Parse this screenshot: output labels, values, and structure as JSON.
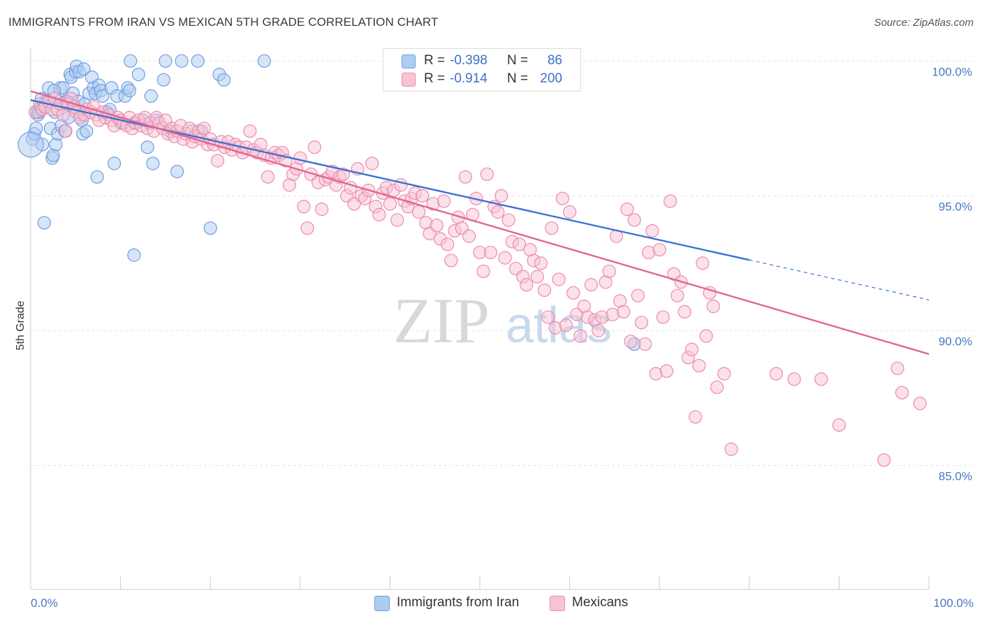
{
  "title": "IMMIGRANTS FROM IRAN VS MEXICAN 5TH GRADE CORRELATION CHART",
  "source": "Source: ZipAtlas.com",
  "colors": {
    "iran_fill": "#aecbf1",
    "iran_stroke": "#6f9ee0",
    "iran_line": "#3a72d0",
    "mex_fill": "#f8c3d3",
    "mex_stroke": "#ec8aab",
    "mex_line": "#e06791",
    "tick_text": "#4a78c4",
    "grid": "#e3e3e3"
  },
  "legend_top": {
    "rows": [
      {
        "r_label": "R =",
        "r_value": "-0.398",
        "n_label": "N =",
        "n_value": "86",
        "series": "iran"
      },
      {
        "r_label": "R =",
        "r_value": "-0.914",
        "n_label": "N =",
        "n_value": "200",
        "series": "mex"
      }
    ]
  },
  "legend_bottom": {
    "items": [
      {
        "label": "Immigrants from Iran",
        "series": "iran"
      },
      {
        "label": "Mexicans",
        "series": "mex"
      }
    ]
  },
  "watermark": {
    "zip": "ZIP",
    "atlas": "atlas"
  },
  "chart_data": {
    "type": "scatter",
    "title": "IMMIGRANTS FROM IRAN VS MEXICAN 5TH GRADE CORRELATION CHART",
    "xlabel": "",
    "ylabel": "5th Grade",
    "x_tick_labels": [
      "0.0%",
      "100.0%"
    ],
    "y_tick_labels": [
      "100.0%",
      "95.0%",
      "90.0%",
      "85.0%"
    ],
    "y_tick_values": [
      100,
      95,
      90,
      85
    ],
    "xlim": [
      0,
      100
    ],
    "ylim": [
      80.4,
      100.5
    ],
    "grid": true,
    "legend_position": "top-center",
    "series": [
      {
        "name": "Immigrants from Iran",
        "key": "iran",
        "R": -0.398,
        "N": 86,
        "trend": {
          "x0": 0,
          "y0": 98.55,
          "x1": 80,
          "y1": 92.62,
          "dash_to_x": 100,
          "dash_to_y": 91.14
        },
        "points": [
          [
            0.2,
            97.1
          ],
          [
            0.4,
            97.3
          ],
          [
            0.6,
            97.5
          ],
          [
            0.7,
            98.1
          ],
          [
            0.8,
            98.0
          ],
          [
            1.0,
            98.2
          ],
          [
            1.1,
            98.3
          ],
          [
            1.3,
            96.9
          ],
          [
            1.5,
            98.4
          ],
          [
            1.7,
            98.5
          ],
          [
            2.0,
            99.0
          ],
          [
            2.1,
            98.5
          ],
          [
            2.2,
            97.5
          ],
          [
            2.4,
            96.4
          ],
          [
            2.5,
            96.5
          ],
          [
            2.7,
            98.1
          ],
          [
            2.8,
            96.9
          ],
          [
            3.0,
            97.3
          ],
          [
            3.1,
            98.5
          ],
          [
            3.3,
            99.0
          ],
          [
            3.4,
            97.6
          ],
          [
            3.5,
            98.4
          ],
          [
            3.6,
            99.0
          ],
          [
            3.8,
            97.4
          ],
          [
            4.0,
            98.4
          ],
          [
            4.1,
            98.5
          ],
          [
            4.2,
            97.9
          ],
          [
            4.4,
            99.5
          ],
          [
            4.5,
            99.4
          ],
          [
            4.7,
            98.8
          ],
          [
            4.8,
            98.3
          ],
          [
            5.0,
            99.6
          ],
          [
            5.1,
            99.8
          ],
          [
            5.2,
            98.2
          ],
          [
            5.3,
            98.5
          ],
          [
            5.4,
            99.6
          ],
          [
            5.6,
            98.0
          ],
          [
            5.7,
            97.8
          ],
          [
            5.8,
            97.3
          ],
          [
            5.9,
            99.7
          ],
          [
            6.2,
            97.4
          ],
          [
            6.5,
            98.8
          ],
          [
            6.8,
            99.4
          ],
          [
            7.0,
            99.0
          ],
          [
            7.2,
            98.8
          ],
          [
            7.4,
            95.7
          ],
          [
            7.6,
            99.1
          ],
          [
            7.8,
            98.9
          ],
          [
            8.0,
            98.7
          ],
          [
            8.5,
            98.1
          ],
          [
            9.0,
            99.0
          ],
          [
            9.3,
            96.2
          ],
          [
            9.6,
            98.7
          ],
          [
            10.0,
            97.7
          ],
          [
            10.5,
            98.7
          ],
          [
            10.8,
            99.0
          ],
          [
            11.0,
            98.9
          ],
          [
            11.1,
            100.0
          ],
          [
            11.5,
            97.7
          ],
          [
            12.0,
            99.5
          ],
          [
            12.5,
            97.8
          ],
          [
            13.0,
            96.8
          ],
          [
            13.4,
            98.7
          ],
          [
            13.6,
            96.2
          ],
          [
            14.0,
            97.8
          ],
          [
            14.8,
            99.3
          ],
          [
            15.0,
            100.0
          ],
          [
            15.5,
            97.4
          ],
          [
            16.3,
            95.9
          ],
          [
            16.8,
            100.0
          ],
          [
            18.0,
            97.4
          ],
          [
            18.6,
            100.0
          ],
          [
            19.0,
            97.4
          ],
          [
            20.0,
            93.8
          ],
          [
            21.0,
            99.5
          ],
          [
            21.5,
            99.3
          ],
          [
            26.0,
            100.0
          ],
          [
            1.5,
            94.0
          ],
          [
            11.5,
            92.8
          ],
          [
            67.2,
            89.5
          ],
          [
            0.9,
            98.1
          ],
          [
            2.6,
            98.9
          ],
          [
            3.9,
            98.5
          ],
          [
            6.0,
            98.4
          ],
          [
            8.8,
            98.2
          ],
          [
            1.2,
            98.6
          ]
        ]
      },
      {
        "name": "Mexicans",
        "key": "mex",
        "R": -0.914,
        "N": 200,
        "trend": {
          "x0": 0,
          "y0": 98.88,
          "x1": 100,
          "y1": 89.13
        },
        "points": [
          [
            0.5,
            98.1
          ],
          [
            1.0,
            98.4
          ],
          [
            1.3,
            98.2
          ],
          [
            1.6,
            98.3
          ],
          [
            2.0,
            98.5
          ],
          [
            2.4,
            98.2
          ],
          [
            2.7,
            98.6
          ],
          [
            3.0,
            98.2
          ],
          [
            3.3,
            98.4
          ],
          [
            3.6,
            98.0
          ],
          [
            3.9,
            97.4
          ],
          [
            4.2,
            98.4
          ],
          [
            4.5,
            98.6
          ],
          [
            4.8,
            98.3
          ],
          [
            5.1,
            98.1
          ],
          [
            5.5,
            97.9
          ],
          [
            6.0,
            98.0
          ],
          [
            6.3,
            98.2
          ],
          [
            6.7,
            98.1
          ],
          [
            7.0,
            98.3
          ],
          [
            7.3,
            98.0
          ],
          [
            7.6,
            97.8
          ],
          [
            8.0,
            98.1
          ],
          [
            8.3,
            97.9
          ],
          [
            8.7,
            98.0
          ],
          [
            9.0,
            97.8
          ],
          [
            9.3,
            97.6
          ],
          [
            9.7,
            97.9
          ],
          [
            10.0,
            97.8
          ],
          [
            10.3,
            97.7
          ],
          [
            10.7,
            97.6
          ],
          [
            11.0,
            97.9
          ],
          [
            11.3,
            97.5
          ],
          [
            11.7,
            97.7
          ],
          [
            12.0,
            97.8
          ],
          [
            12.3,
            97.6
          ],
          [
            12.7,
            97.9
          ],
          [
            13.0,
            97.5
          ],
          [
            13.3,
            97.7
          ],
          [
            13.7,
            97.4
          ],
          [
            14.0,
            97.9
          ],
          [
            14.3,
            97.7
          ],
          [
            14.7,
            97.5
          ],
          [
            15.0,
            97.8
          ],
          [
            15.3,
            97.3
          ],
          [
            15.7,
            97.5
          ],
          [
            16.0,
            97.2
          ],
          [
            16.3,
            97.4
          ],
          [
            16.7,
            97.6
          ],
          [
            17.0,
            97.1
          ],
          [
            17.3,
            97.3
          ],
          [
            17.7,
            97.5
          ],
          [
            18.0,
            97.0
          ],
          [
            18.3,
            97.2
          ],
          [
            18.7,
            97.4
          ],
          [
            19.0,
            97.1
          ],
          [
            19.3,
            97.5
          ],
          [
            19.7,
            96.9
          ],
          [
            20.0,
            97.1
          ],
          [
            20.4,
            96.9
          ],
          [
            20.8,
            96.3
          ],
          [
            21.2,
            97.0
          ],
          [
            21.6,
            96.8
          ],
          [
            22.0,
            97.0
          ],
          [
            22.4,
            96.7
          ],
          [
            22.8,
            96.9
          ],
          [
            23.2,
            96.8
          ],
          [
            23.6,
            96.6
          ],
          [
            24.0,
            96.8
          ],
          [
            24.4,
            97.4
          ],
          [
            24.8,
            96.7
          ],
          [
            25.2,
            96.6
          ],
          [
            25.6,
            96.9
          ],
          [
            26.0,
            96.5
          ],
          [
            26.4,
            95.7
          ],
          [
            26.8,
            96.4
          ],
          [
            27.2,
            96.6
          ],
          [
            27.6,
            96.5
          ],
          [
            28.0,
            96.6
          ],
          [
            28.4,
            96.3
          ],
          [
            28.8,
            95.4
          ],
          [
            29.2,
            95.8
          ],
          [
            29.6,
            96.0
          ],
          [
            30.0,
            96.4
          ],
          [
            30.4,
            94.6
          ],
          [
            30.8,
            93.8
          ],
          [
            31.2,
            95.8
          ],
          [
            31.6,
            96.8
          ],
          [
            32.0,
            95.5
          ],
          [
            32.4,
            94.5
          ],
          [
            32.8,
            95.6
          ],
          [
            33.2,
            95.7
          ],
          [
            33.6,
            95.9
          ],
          [
            34.0,
            95.4
          ],
          [
            34.4,
            95.7
          ],
          [
            34.8,
            95.8
          ],
          [
            35.2,
            95.0
          ],
          [
            35.6,
            95.3
          ],
          [
            36.0,
            94.7
          ],
          [
            36.4,
            96.0
          ],
          [
            36.8,
            95.0
          ],
          [
            37.2,
            94.9
          ],
          [
            37.6,
            95.2
          ],
          [
            38.0,
            96.2
          ],
          [
            38.4,
            94.6
          ],
          [
            38.8,
            94.3
          ],
          [
            39.2,
            95.1
          ],
          [
            39.6,
            95.3
          ],
          [
            40.0,
            94.7
          ],
          [
            40.4,
            95.2
          ],
          [
            40.8,
            94.1
          ],
          [
            41.2,
            95.4
          ],
          [
            41.6,
            94.8
          ],
          [
            42.0,
            94.6
          ],
          [
            42.4,
            94.9
          ],
          [
            42.8,
            95.1
          ],
          [
            43.2,
            94.4
          ],
          [
            43.6,
            95.0
          ],
          [
            44.0,
            94.0
          ],
          [
            44.4,
            93.6
          ],
          [
            44.8,
            94.7
          ],
          [
            45.2,
            93.9
          ],
          [
            45.6,
            93.4
          ],
          [
            46.0,
            94.8
          ],
          [
            46.4,
            93.2
          ],
          [
            46.8,
            92.6
          ],
          [
            47.2,
            93.7
          ],
          [
            47.6,
            94.2
          ],
          [
            48.0,
            93.8
          ],
          [
            48.4,
            95.7
          ],
          [
            48.8,
            93.5
          ],
          [
            49.2,
            94.3
          ],
          [
            49.6,
            94.9
          ],
          [
            50.0,
            92.9
          ],
          [
            50.4,
            92.2
          ],
          [
            50.8,
            95.8
          ],
          [
            51.2,
            92.9
          ],
          [
            51.6,
            94.6
          ],
          [
            52.0,
            94.4
          ],
          [
            52.4,
            95.0
          ],
          [
            52.8,
            92.7
          ],
          [
            53.2,
            94.1
          ],
          [
            53.6,
            93.3
          ],
          [
            54.0,
            92.3
          ],
          [
            54.4,
            93.2
          ],
          [
            54.8,
            92.0
          ],
          [
            55.2,
            91.7
          ],
          [
            55.6,
            93.0
          ],
          [
            56.0,
            92.6
          ],
          [
            56.4,
            92.0
          ],
          [
            56.8,
            92.5
          ],
          [
            57.2,
            91.5
          ],
          [
            57.6,
            90.5
          ],
          [
            58.0,
            93.8
          ],
          [
            58.4,
            90.1
          ],
          [
            58.8,
            91.9
          ],
          [
            59.2,
            94.9
          ],
          [
            59.6,
            90.2
          ],
          [
            60.0,
            94.4
          ],
          [
            60.4,
            91.4
          ],
          [
            60.8,
            90.6
          ],
          [
            61.2,
            89.8
          ],
          [
            61.6,
            90.9
          ],
          [
            62.0,
            90.5
          ],
          [
            62.4,
            91.7
          ],
          [
            62.8,
            90.4
          ],
          [
            63.2,
            90.0
          ],
          [
            63.6,
            90.5
          ],
          [
            64.0,
            91.8
          ],
          [
            64.4,
            92.2
          ],
          [
            64.8,
            90.6
          ],
          [
            65.2,
            93.5
          ],
          [
            65.6,
            91.1
          ],
          [
            66.0,
            90.7
          ],
          [
            66.4,
            94.5
          ],
          [
            66.8,
            89.6
          ],
          [
            67.2,
            94.1
          ],
          [
            67.6,
            91.3
          ],
          [
            68.0,
            90.3
          ],
          [
            68.4,
            89.5
          ],
          [
            68.8,
            92.9
          ],
          [
            69.2,
            93.7
          ],
          [
            69.6,
            88.4
          ],
          [
            70.0,
            93.0
          ],
          [
            70.4,
            90.5
          ],
          [
            70.8,
            88.5
          ],
          [
            71.2,
            94.8
          ],
          [
            71.6,
            92.1
          ],
          [
            72.0,
            91.3
          ],
          [
            72.4,
            91.8
          ],
          [
            72.8,
            90.7
          ],
          [
            73.2,
            89.0
          ],
          [
            73.6,
            89.3
          ],
          [
            74.0,
            86.8
          ],
          [
            74.4,
            88.7
          ],
          [
            74.8,
            92.5
          ],
          [
            75.2,
            89.8
          ],
          [
            75.6,
            91.4
          ],
          [
            76.0,
            90.9
          ],
          [
            76.4,
            87.9
          ],
          [
            77.2,
            88.4
          ],
          [
            78.0,
            85.6
          ],
          [
            83.0,
            88.4
          ],
          [
            85.0,
            88.2
          ],
          [
            88.0,
            88.2
          ],
          [
            90.0,
            86.5
          ],
          [
            95.0,
            85.2
          ],
          [
            97.0,
            87.7
          ],
          [
            99.0,
            87.3
          ],
          [
            96.5,
            88.6
          ]
        ]
      }
    ]
  }
}
